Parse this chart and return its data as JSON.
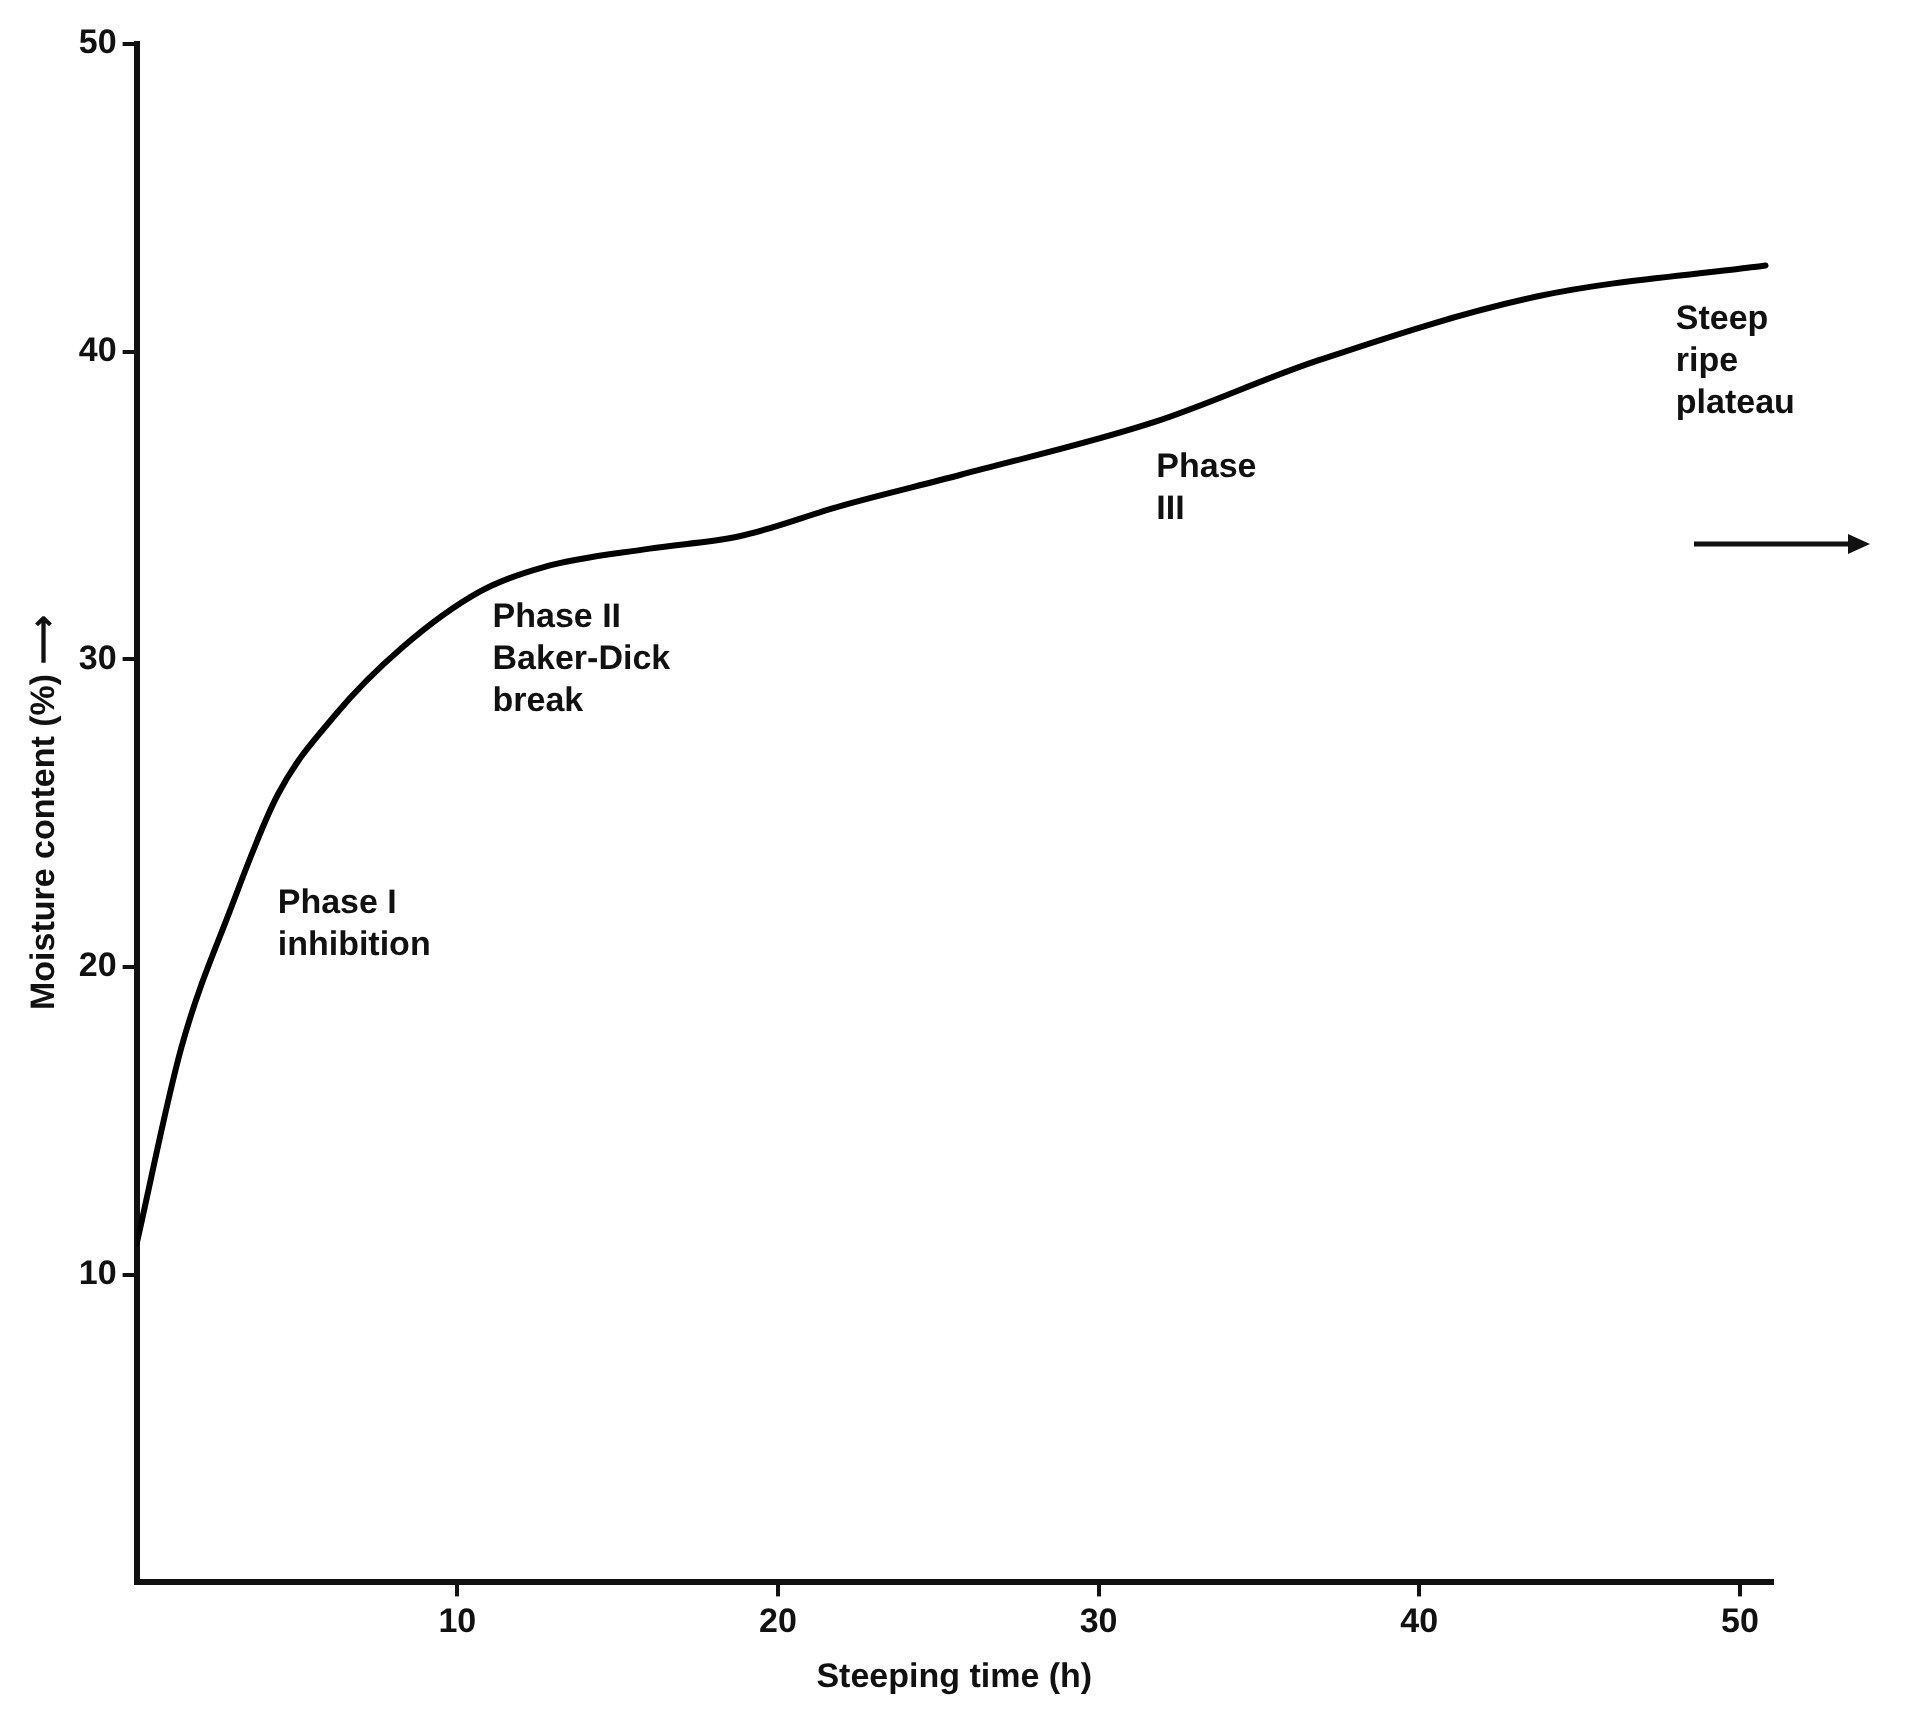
{
  "chart_data": {
    "type": "line",
    "xlabel": "Steeping time (h)",
    "ylabel": "Moisture content (%) ⟶",
    "x": [
      0,
      1.4,
      2.9,
      4.4,
      6.2,
      8.3,
      10.7,
      12.7,
      16,
      18.8,
      22,
      25.7,
      31.7,
      36.8,
      43.7,
      50.8
    ],
    "series": [
      {
        "color": "#000000",
        "values": [
          11,
          17.4,
          21.8,
          25.6,
          28.2,
          30.4,
          32.2,
          33,
          33.6,
          34,
          35,
          36,
          37.7,
          39.7,
          41.8,
          42.8
        ]
      }
    ],
    "xlim": [
      0,
      51
    ],
    "xticks": [
      10,
      20,
      30,
      40,
      50
    ],
    "ylim": [
      0,
      50
    ],
    "yticks": [
      10,
      20,
      30,
      40,
      50
    ],
    "grid": false,
    "legend": false,
    "marker": "none",
    "line_style": "solid",
    "annotations": [
      "Phase I\ninhibition",
      "Phase II\nBaker-Dick\nbreak",
      "Phase\nIII",
      "Steep\nripe\nplateau"
    ]
  }
}
